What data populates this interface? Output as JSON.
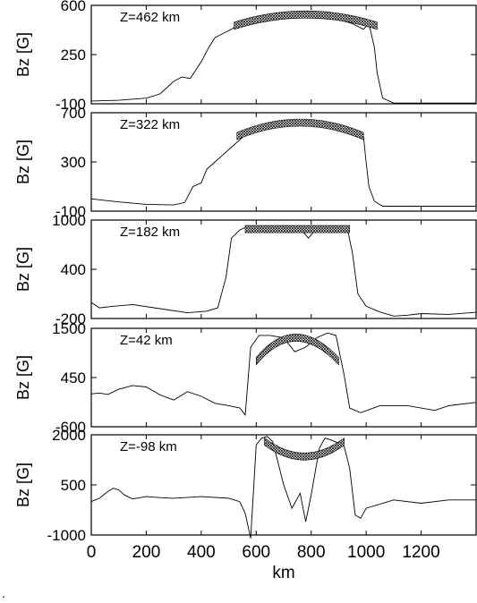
{
  "chart_data": [
    {
      "type": "line",
      "annotation": "Z=462 km",
      "ylabel": "Bz [G]",
      "yticks": [
        -100,
        250,
        600
      ],
      "ylim": [
        -100,
        600
      ],
      "xlim": [
        0,
        1400
      ],
      "x": [
        0,
        100,
        200,
        250,
        300,
        330,
        360,
        400,
        430,
        450,
        480,
        510,
        530,
        560,
        600,
        650,
        700,
        750,
        800,
        850,
        900,
        950,
        990,
        1010,
        1030,
        1040,
        1060,
        1100,
        1200,
        1300,
        1400
      ],
      "y": [
        -80,
        -75,
        -60,
        -30,
        60,
        90,
        80,
        200,
        310,
        370,
        400,
        430,
        460,
        480,
        500,
        520,
        540,
        545,
        530,
        520,
        500,
        470,
        430,
        470,
        300,
        120,
        -60,
        -95,
        -95,
        -95,
        -95
      ],
      "fit": {
        "x": [
          520,
          780,
          1040
        ],
        "y": [
          455,
          535,
          455
        ]
      }
    },
    {
      "type": "line",
      "annotation": "Z=322 km",
      "ylabel": "Bz [G]",
      "yticks": [
        -100,
        300,
        700
      ],
      "ylim": [
        -100,
        700
      ],
      "xlim": [
        0,
        1400
      ],
      "x": [
        0,
        100,
        200,
        300,
        340,
        370,
        400,
        420,
        450,
        480,
        510,
        540,
        580,
        620,
        650,
        700,
        750,
        780,
        810,
        860,
        920,
        960,
        990,
        1000,
        1010,
        1030,
        1060,
        1100,
        1200,
        1300,
        1400
      ],
      "y": [
        0,
        -25,
        -45,
        -50,
        -30,
        100,
        130,
        240,
        300,
        360,
        420,
        480,
        560,
        600,
        620,
        640,
        630,
        600,
        640,
        610,
        560,
        560,
        510,
        300,
        100,
        -20,
        -60,
        -60,
        -60,
        -60,
        -60
      ],
      "fit": {
        "x": [
          530,
          760,
          990
        ],
        "y": [
          510,
          620,
          510
        ]
      }
    },
    {
      "type": "line",
      "annotation": "Z=182 km",
      "ylabel": "Bz [G]",
      "yticks": [
        -200,
        400,
        1000
      ],
      "ylim": [
        -200,
        1000
      ],
      "xlim": [
        0,
        1400
      ],
      "x": [
        0,
        30,
        80,
        150,
        250,
        350,
        420,
        460,
        490,
        510,
        540,
        570,
        600,
        630,
        660,
        700,
        720,
        760,
        790,
        820,
        860,
        900,
        930,
        950,
        970,
        1000,
        1050,
        1100,
        1150,
        1200,
        1300,
        1400
      ],
      "y": [
        -5,
        -70,
        -50,
        -30,
        -80,
        -130,
        -110,
        -70,
        300,
        780,
        880,
        920,
        850,
        920,
        860,
        930,
        920,
        900,
        780,
        900,
        920,
        900,
        920,
        600,
        100,
        -50,
        -120,
        -170,
        -160,
        -140,
        -150,
        -125
      ],
      "fit": {
        "x": [
          560,
          750,
          940
        ],
        "y": [
          890,
          890,
          890
        ]
      }
    },
    {
      "type": "line",
      "annotation": "Z=42 km",
      "ylabel": "Bz [G]",
      "yticks": [
        -600,
        450,
        1500
      ],
      "ylim": [
        -600,
        1500
      ],
      "xlim": [
        0,
        1400
      ],
      "x": [
        0,
        30,
        60,
        100,
        150,
        200,
        250,
        300,
        350,
        400,
        450,
        500,
        540,
        560,
        580,
        610,
        650,
        700,
        740,
        780,
        820,
        860,
        890,
        920,
        940,
        980,
        1050,
        1150,
        1250,
        1300,
        1400
      ],
      "y": [
        100,
        120,
        90,
        200,
        280,
        250,
        80,
        -30,
        150,
        50,
        -100,
        -150,
        -200,
        -350,
        1100,
        1350,
        1350,
        1300,
        1000,
        1100,
        1300,
        1400,
        1350,
        500,
        -200,
        -300,
        -150,
        -150,
        -250,
        -150,
        -80
      ],
      "fit": {
        "x": [
          600,
          745,
          900
        ],
        "y": [
          800,
          1300,
          800
        ]
      }
    },
    {
      "type": "line",
      "annotation": "Z=-98 km",
      "ylabel": "Bz [G]",
      "yticks": [
        -1000,
        500,
        2000
      ],
      "ylim": [
        -1000,
        2000
      ],
      "xlim": [
        0,
        1400
      ],
      "xticks": [
        0,
        200,
        400,
        600,
        800,
        1000,
        1200
      ],
      "xlabel": "km",
      "x": [
        0,
        30,
        60,
        80,
        100,
        120,
        150,
        200,
        250,
        300,
        400,
        500,
        540,
        560,
        580,
        600,
        620,
        640,
        660,
        700,
        730,
        760,
        780,
        800,
        830,
        850,
        870,
        900,
        920,
        940,
        960,
        980,
        1000,
        1100,
        1200,
        1300,
        1400
      ],
      "y": [
        0,
        100,
        300,
        400,
        350,
        200,
        80,
        150,
        120,
        100,
        150,
        100,
        0,
        -350,
        -1100,
        1700,
        1900,
        1950,
        1800,
        500,
        -200,
        250,
        -600,
        200,
        1600,
        1900,
        1850,
        1750,
        1650,
        1000,
        -400,
        -500,
        -200,
        50,
        -50,
        50,
        50
      ],
      "fit": {
        "x": [
          630,
          775,
          920
        ],
        "y": [
          1800,
          1350,
          1800
        ]
      }
    }
  ],
  "footnote": "."
}
